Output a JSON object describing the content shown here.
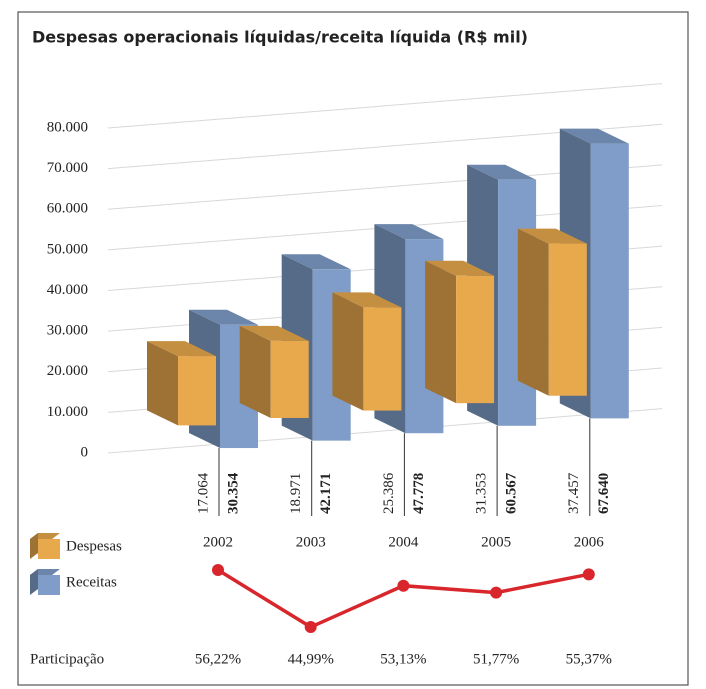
{
  "chart_data": [
    {
      "type": "bar3d",
      "title": "Despesas operacionais líquidas/receita líquida (R$ mil)",
      "categories": [
        "2002",
        "2003",
        "2004",
        "2005",
        "2006"
      ],
      "series": [
        {
          "name": "Despesas",
          "color": "#e8a84c",
          "values": [
            17064,
            18971,
            25386,
            31353,
            37457
          ],
          "value_labels": [
            "17.064",
            "18.971",
            "25.386",
            "31.353",
            "37.457"
          ]
        },
        {
          "name": "Receitas",
          "color": "#7f9dc8",
          "values": [
            30354,
            42171,
            47778,
            60567,
            67640
          ],
          "value_labels": [
            "30.354",
            "42.171",
            "47.778",
            "60.567",
            "67.640"
          ]
        }
      ],
      "ylim": [
        0,
        80000
      ],
      "yticks": [
        0,
        {
          "value": 10000,
          "label": "10.000"
        },
        {
          "value": 20000,
          "label": "20.000"
        },
        {
          "value": 30000,
          "label": "30.000"
        },
        {
          "value": 40000,
          "label": "40.000"
        },
        {
          "value": 50000,
          "label": "50.000"
        },
        {
          "value": 60000,
          "label": "60.000"
        },
        {
          "value": 70000,
          "label": "70.000"
        },
        {
          "value": 80000,
          "label": "80.000"
        }
      ],
      "grid": true
    },
    {
      "type": "line",
      "series": [
        {
          "name": "Participação",
          "color": "#d8262c",
          "values": [
            56.22,
            44.99,
            53.13,
            51.77,
            55.37
          ],
          "value_labels": [
            "56,22%",
            "44,99%",
            "53,13%",
            "51,77%",
            "55,37%"
          ]
        }
      ],
      "ylim": [
        40,
        60
      ]
    }
  ]
}
